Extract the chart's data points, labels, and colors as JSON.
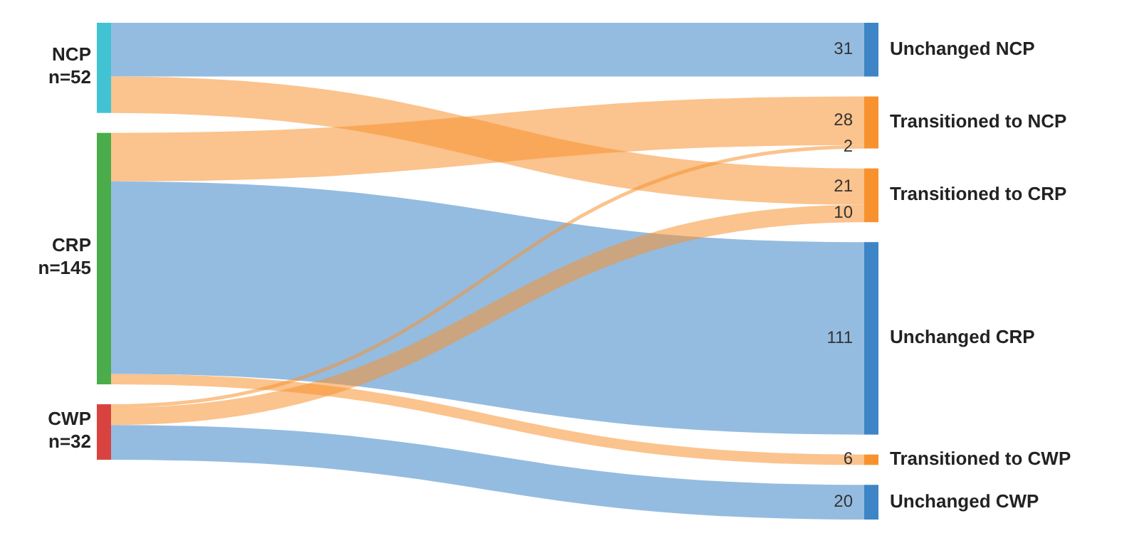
{
  "chart_data": {
    "type": "other",
    "data_labels": true,
    "categories": [
      "Unchanged NCP",
      "Transitioned to NCP",
      "Transitioned to CRP",
      "Unchanged CRP",
      "Transitioned to CWP",
      "Unchanged CWP"
    ],
    "colors": [
      "#3d85c6",
      "#f7922f",
      "#f7922f",
      "#3d85c6",
      "#f7922f",
      "#3d85c6"
    ],
    "series": [
      {
        "name": "NCP\nn=52",
        "values": [
          31,
          null,
          21,
          null,
          null,
          null
        ]
      },
      {
        "name": "CRP\nn=145",
        "values": [
          null,
          28,
          null,
          111,
          6,
          null
        ]
      },
      {
        "name": "CWP\nn=32",
        "values": [
          null,
          2,
          10,
          null,
          null,
          20
        ]
      }
    ]
  }
}
